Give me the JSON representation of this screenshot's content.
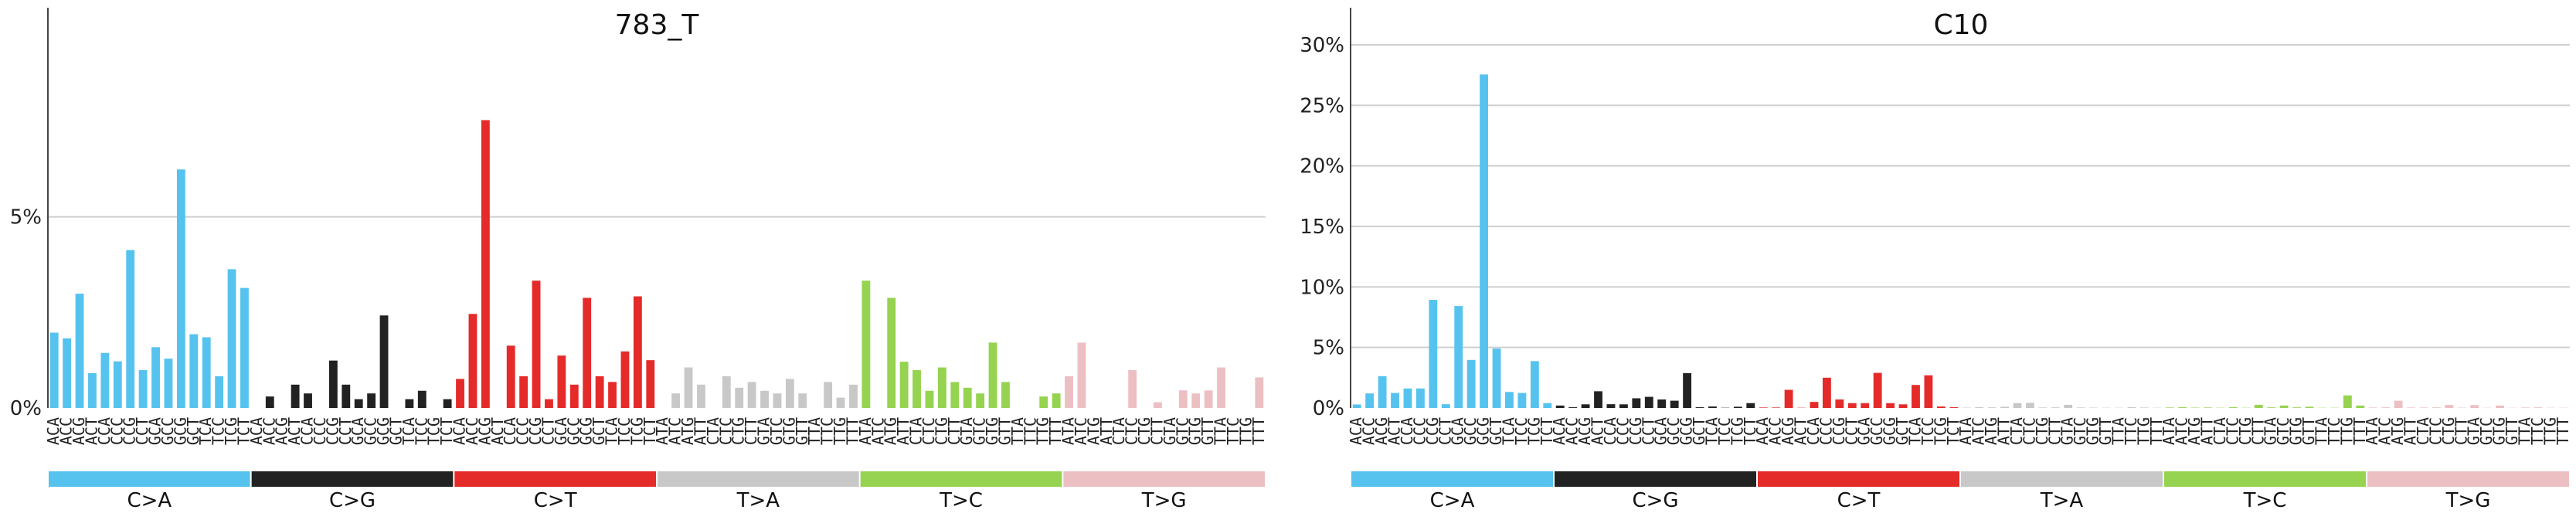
{
  "chart_data": [
    {
      "type": "bar",
      "title": "783_T",
      "xlabel": "",
      "ylabel": "",
      "ylim": [
        0,
        0.095
      ],
      "yticks": [
        0,
        0.05
      ],
      "ytick_labels": [
        "0%",
        "5%"
      ],
      "grid": "horizontal",
      "categories": [
        "A[C>A]A",
        "A[C>A]C",
        "A[C>A]G",
        "A[C>A]T",
        "C[C>A]A",
        "C[C>A]C",
        "C[C>A]G",
        "C[C>A]T",
        "G[C>A]A",
        "G[C>A]C",
        "G[C>A]G",
        "G[C>A]T",
        "T[C>A]A",
        "T[C>A]C",
        "T[C>A]G",
        "T[C>A]T",
        "A[C>G]A",
        "A[C>G]C",
        "A[C>G]G",
        "A[C>G]T",
        "C[C>G]A",
        "C[C>G]C",
        "C[C>G]G",
        "C[C>G]T",
        "G[C>G]A",
        "G[C>G]C",
        "G[C>G]G",
        "G[C>G]T",
        "T[C>G]A",
        "T[C>G]C",
        "T[C>G]G",
        "T[C>G]T",
        "A[C>T]A",
        "A[C>T]C",
        "A[C>T]G",
        "A[C>T]T",
        "C[C>T]A",
        "C[C>T]C",
        "C[C>T]G",
        "C[C>T]T",
        "G[C>T]A",
        "G[C>T]C",
        "G[C>T]G",
        "G[C>T]T",
        "T[C>T]A",
        "T[C>T]C",
        "T[C>T]G",
        "T[C>T]T",
        "A[T>A]A",
        "A[T>A]C",
        "A[T>A]G",
        "A[T>A]T",
        "C[T>A]A",
        "C[T>A]C",
        "C[T>A]G",
        "C[T>A]T",
        "G[T>A]A",
        "G[T>A]C",
        "G[T>A]G",
        "G[T>A]T",
        "T[T>A]A",
        "T[T>A]C",
        "T[T>A]G",
        "T[T>A]T",
        "A[T>C]A",
        "A[T>C]C",
        "A[T>C]G",
        "A[T>C]T",
        "C[T>C]A",
        "C[T>C]C",
        "C[T>C]G",
        "C[T>C]T",
        "G[T>C]A",
        "G[T>C]C",
        "G[T>C]G",
        "G[T>C]T",
        "T[T>C]A",
        "T[T>C]C",
        "T[T>C]G",
        "T[T>C]T",
        "A[T>G]A",
        "A[T>G]C",
        "A[T>G]G",
        "A[T>G]T",
        "C[T>G]A",
        "C[T>G]C",
        "C[T>G]G",
        "C[T>G]T",
        "G[T>G]A",
        "G[T>G]C",
        "G[T>G]G",
        "G[T>G]T",
        "T[T>G]A",
        "T[T>G]C",
        "T[T>G]G",
        "T[T>G]T"
      ],
      "tick_labels": [
        "ACA",
        "ACC",
        "ACG",
        "ACT",
        "CCA",
        "CCC",
        "CCG",
        "CCT",
        "GCA",
        "GCC",
        "GCG",
        "GCT",
        "TCA",
        "TCC",
        "TCG",
        "TCT",
        "ACA",
        "ACC",
        "ACG",
        "ACT",
        "CCA",
        "CCC",
        "CCG",
        "CCT",
        "GCA",
        "GCC",
        "GCG",
        "GCT",
        "TCA",
        "TCC",
        "TCG",
        "TCT",
        "ACA",
        "ACC",
        "ACG",
        "ACT",
        "CCA",
        "CCC",
        "CCG",
        "CCT",
        "GCA",
        "GCC",
        "GCG",
        "GCT",
        "TCA",
        "TCC",
        "TCG",
        "TCT",
        "ATA",
        "ATC",
        "ATG",
        "ATT",
        "CTA",
        "CTC",
        "CTG",
        "CTT",
        "GTA",
        "GTC",
        "GTG",
        "GTT",
        "TTA",
        "TTC",
        "TTG",
        "TTT",
        "ATA",
        "ATC",
        "ATG",
        "ATT",
        "CTA",
        "CTC",
        "CTG",
        "CTT",
        "GTA",
        "GTC",
        "GTG",
        "GTT",
        "TTA",
        "TTC",
        "TTG",
        "TTT",
        "ATA",
        "ATC",
        "ATG",
        "ATT",
        "CTA",
        "CTC",
        "CTG",
        "CTT",
        "GTA",
        "GTC",
        "GTG",
        "GTT",
        "TTA",
        "TTC",
        "TTG",
        "TTT"
      ],
      "values": [
        0.0197,
        0.0182,
        0.0299,
        0.0091,
        0.0144,
        0.0122,
        0.0413,
        0.0099,
        0.0159,
        0.0129,
        0.0624,
        0.0193,
        0.0185,
        0.0083,
        0.0363,
        0.0314,
        0.0,
        0.003,
        0.0,
        0.0061,
        0.0038,
        0.0,
        0.0124,
        0.0061,
        0.0023,
        0.0038,
        0.0242,
        0.0,
        0.0023,
        0.0045,
        0.0,
        0.0023,
        0.0076,
        0.0246,
        0.0753,
        0.0,
        0.0163,
        0.0083,
        0.0333,
        0.0023,
        0.0137,
        0.0061,
        0.0288,
        0.0083,
        0.0068,
        0.0148,
        0.0292,
        0.0125,
        0.0,
        0.0038,
        0.0106,
        0.0061,
        0.0,
        0.0083,
        0.0053,
        0.0068,
        0.0045,
        0.0038,
        0.0076,
        0.0038,
        0.0,
        0.0068,
        0.0027,
        0.0061,
        0.0333,
        0.0,
        0.0288,
        0.0121,
        0.0099,
        0.0045,
        0.0106,
        0.0068,
        0.0053,
        0.0038,
        0.0171,
        0.0068,
        0.0,
        0.0,
        0.003,
        0.0038,
        0.0083,
        0.0171,
        0.0,
        0.0,
        0.0,
        0.0099,
        0.0,
        0.0015,
        0.0,
        0.0046,
        0.0038,
        0.0046,
        0.0106,
        0.0,
        0.0,
        0.008
      ]
    },
    {
      "type": "bar",
      "title": "C10",
      "xlabel": "",
      "ylabel": "",
      "ylim": [
        0,
        0.3
      ],
      "yticks": [
        0,
        0.05,
        0.1,
        0.15,
        0.2,
        0.25,
        0.3
      ],
      "ytick_labels": [
        "0%",
        "5%",
        "10%",
        "15%",
        "20%",
        "25%",
        "30%"
      ],
      "grid": "horizontal",
      "categories": [
        "A[C>A]A",
        "A[C>A]C",
        "A[C>A]G",
        "A[C>A]T",
        "C[C>A]A",
        "C[C>A]C",
        "C[C>A]G",
        "C[C>A]T",
        "G[C>A]A",
        "G[C>A]C",
        "G[C>A]G",
        "G[C>A]T",
        "T[C>A]A",
        "T[C>A]C",
        "T[C>A]G",
        "T[C>A]T",
        "A[C>G]A",
        "A[C>G]C",
        "A[C>G]G",
        "A[C>G]T",
        "C[C>G]A",
        "C[C>G]C",
        "C[C>G]G",
        "C[C>G]T",
        "G[C>G]A",
        "G[C>G]C",
        "G[C>G]G",
        "G[C>G]T",
        "T[C>G]A",
        "T[C>G]C",
        "T[C>G]G",
        "T[C>G]T",
        "A[C>T]A",
        "A[C>T]C",
        "A[C>T]G",
        "A[C>T]T",
        "C[C>T]A",
        "C[C>T]C",
        "C[C>T]G",
        "C[C>T]T",
        "G[C>T]A",
        "G[C>T]C",
        "G[C>T]G",
        "G[C>T]T",
        "T[C>T]A",
        "T[C>T]C",
        "T[C>T]G",
        "T[C>T]T",
        "A[T>A]A",
        "A[T>A]C",
        "A[T>A]G",
        "A[T>A]T",
        "C[T>A]A",
        "C[T>A]C",
        "C[T>A]G",
        "C[T>A]T",
        "G[T>A]A",
        "G[T>A]C",
        "G[T>A]G",
        "G[T>A]T",
        "T[T>A]A",
        "T[T>A]C",
        "T[T>A]G",
        "T[T>A]T",
        "A[T>C]A",
        "A[T>C]C",
        "A[T>C]G",
        "A[T>C]T",
        "C[T>C]A",
        "C[T>C]C",
        "C[T>C]G",
        "C[T>C]T",
        "G[T>C]A",
        "G[T>C]C",
        "G[T>C]G",
        "G[T>C]T",
        "T[T>C]A",
        "T[T>C]C",
        "T[T>C]G",
        "T[T>C]T",
        "A[T>G]A",
        "A[T>G]C",
        "A[T>G]G",
        "A[T>G]T",
        "C[T>G]A",
        "C[T>G]C",
        "C[T>G]G",
        "C[T>G]T",
        "G[T>G]A",
        "G[T>G]C",
        "G[T>G]G",
        "G[T>G]T",
        "T[T>G]A",
        "T[T>G]C",
        "T[T>G]G",
        "T[T>G]T"
      ],
      "tick_labels": [
        "ACA",
        "ACC",
        "ACG",
        "ACT",
        "CCA",
        "CCC",
        "CCG",
        "CCT",
        "GCA",
        "GCC",
        "GCG",
        "GCT",
        "TCA",
        "TCC",
        "TCG",
        "TCT",
        "ACA",
        "ACC",
        "ACG",
        "ACT",
        "CCA",
        "CCC",
        "CCG",
        "CCT",
        "GCA",
        "GCC",
        "GCG",
        "GCT",
        "TCA",
        "TCC",
        "TCG",
        "TCT",
        "ACA",
        "ACC",
        "ACG",
        "ACT",
        "CCA",
        "CCC",
        "CCG",
        "CCT",
        "GCA",
        "GCC",
        "GCG",
        "GCT",
        "TCA",
        "TCC",
        "TCG",
        "TCT",
        "ATA",
        "ATC",
        "ATG",
        "ATT",
        "CTA",
        "CTC",
        "CTG",
        "CTT",
        "GTA",
        "GTC",
        "GTG",
        "GTT",
        "TTA",
        "TTC",
        "TTG",
        "TTT",
        "ATA",
        "ATC",
        "ATG",
        "ATT",
        "CTA",
        "CTC",
        "CTG",
        "CTT",
        "GTA",
        "GTC",
        "GTG",
        "GTT",
        "TTA",
        "TTC",
        "TTG",
        "TTT",
        "ATA",
        "ATC",
        "ATG",
        "ATT",
        "CTA",
        "CTC",
        "CTG",
        "CTT",
        "GTA",
        "GTC",
        "GTG",
        "GTT",
        "TTA",
        "TTC",
        "TTG",
        "TTT"
      ],
      "values": [
        0.0029,
        0.012,
        0.0263,
        0.0124,
        0.0161,
        0.0161,
        0.0893,
        0.0031,
        0.0842,
        0.0397,
        0.2755,
        0.0491,
        0.0132,
        0.0124,
        0.0387,
        0.004,
        0.002,
        0.0006,
        0.003,
        0.0138,
        0.0031,
        0.003,
        0.008,
        0.0092,
        0.007,
        0.006,
        0.0288,
        0.0006,
        0.0012,
        0.0002,
        0.001,
        0.004,
        0.0004,
        0.0004,
        0.015,
        0.0002,
        0.005,
        0.025,
        0.007,
        0.004,
        0.004,
        0.029,
        0.004,
        0.003,
        0.019,
        0.027,
        0.0012,
        0.0006,
        0.0003,
        0.0006,
        0.0005,
        0.001,
        0.004,
        0.0042,
        0.0004,
        0.0005,
        0.0026,
        0.0004,
        0.0003,
        0.0002,
        0.0002,
        0.0006,
        0.0004,
        0.0002,
        0.0004,
        0.0006,
        0.0003,
        0.0004,
        0.0002,
        0.0006,
        0.0002,
        0.0026,
        0.0005,
        0.002,
        0.0005,
        0.001,
        0.0002,
        0.0002,
        0.0104,
        0.002,
        0.0004,
        0.0005,
        0.006,
        0.0004,
        0.0004,
        0.0005,
        0.0025,
        0.0003,
        0.0024,
        0.0002,
        0.002,
        0.0002,
        0.0004,
        0.0005,
        0.0002,
        0.0002
      ]
    }
  ],
  "groups": [
    {
      "name": "C>A",
      "color": "#56c3ee"
    },
    {
      "name": "C>G",
      "color": "#222222"
    },
    {
      "name": "C>T",
      "color": "#e52a2a"
    },
    {
      "name": "T>A",
      "color": "#c8c8c8"
    },
    {
      "name": "T>C",
      "color": "#96d350"
    },
    {
      "name": "T>G",
      "color": "#ecc0c3"
    }
  ],
  "colors": {
    "grid": "#cfcfcf",
    "axis": "#444444"
  }
}
